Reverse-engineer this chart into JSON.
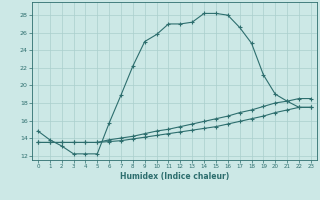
{
  "xlabel": "Humidex (Indice chaleur)",
  "ylabel": "",
  "bg_color": "#cce8e6",
  "grid_color": "#aacfcd",
  "line_color": "#2d6e6e",
  "xlim": [
    -0.5,
    23.5
  ],
  "ylim": [
    11.5,
    29.5
  ],
  "xticks": [
    0,
    1,
    2,
    3,
    4,
    5,
    6,
    7,
    8,
    9,
    10,
    11,
    12,
    13,
    14,
    15,
    16,
    17,
    18,
    19,
    20,
    21,
    22,
    23
  ],
  "yticks": [
    12,
    14,
    16,
    18,
    20,
    22,
    24,
    26,
    28
  ],
  "line1_x": [
    0,
    1,
    2,
    3,
    4,
    5,
    6,
    7,
    8,
    9,
    10,
    11,
    12,
    13,
    14,
    15,
    16,
    17,
    18,
    19,
    20,
    21,
    22,
    23
  ],
  "line1_y": [
    14.8,
    13.8,
    13.1,
    12.2,
    12.2,
    12.2,
    15.7,
    18.9,
    22.2,
    25.0,
    25.8,
    27.0,
    27.0,
    27.2,
    28.2,
    28.2,
    28.0,
    26.6,
    24.8,
    21.2,
    19.0,
    18.2,
    17.5,
    17.5
  ],
  "line2_x": [
    0,
    1,
    2,
    3,
    4,
    5,
    6,
    7,
    8,
    9,
    10,
    11,
    12,
    13,
    14,
    15,
    16,
    17,
    18,
    19,
    20,
    21,
    22,
    23
  ],
  "line2_y": [
    13.5,
    13.5,
    13.5,
    13.5,
    13.5,
    13.5,
    13.8,
    14.0,
    14.2,
    14.5,
    14.8,
    15.0,
    15.3,
    15.6,
    15.9,
    16.2,
    16.5,
    16.9,
    17.2,
    17.6,
    18.0,
    18.2,
    18.5,
    18.5
  ],
  "line3_x": [
    0,
    1,
    2,
    3,
    4,
    5,
    6,
    7,
    8,
    9,
    10,
    11,
    12,
    13,
    14,
    15,
    16,
    17,
    18,
    19,
    20,
    21,
    22,
    23
  ],
  "line3_y": [
    13.5,
    13.5,
    13.5,
    13.5,
    13.5,
    13.5,
    13.6,
    13.7,
    13.9,
    14.1,
    14.3,
    14.5,
    14.7,
    14.9,
    15.1,
    15.3,
    15.6,
    15.9,
    16.2,
    16.5,
    16.9,
    17.2,
    17.5,
    17.5
  ]
}
